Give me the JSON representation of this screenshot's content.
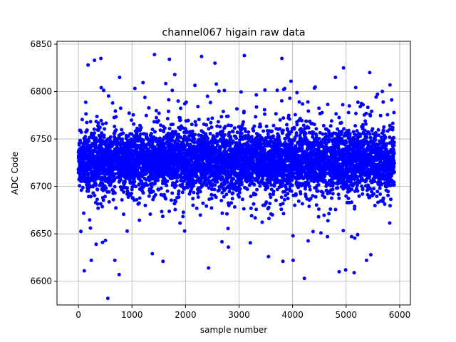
{
  "chart_data": {
    "type": "scatter",
    "title": "channel067 higain raw data",
    "xlabel": "sample number",
    "ylabel": "ADC Code",
    "xlim": [
      -400,
      6200
    ],
    "ylim": [
      6575,
      6853
    ],
    "x_ticks": [
      0,
      1000,
      2000,
      3000,
      4000,
      5000,
      6000
    ],
    "y_ticks": [
      6600,
      6650,
      6700,
      6750,
      6800,
      6850
    ],
    "grid": true,
    "marker_color": "#0000ff",
    "series": [
      {
        "n_points": 6000,
        "x_range": [
          0,
          5900
        ],
        "baseline": 6727,
        "core_spread": 20,
        "outliers": [
          [
            180,
            6828
          ],
          [
            300,
            6833
          ],
          [
            420,
            6835
          ],
          [
            770,
            6815
          ],
          [
            1420,
            6839
          ],
          [
            1700,
            6834
          ],
          [
            1800,
            6818
          ],
          [
            2300,
            6837
          ],
          [
            2550,
            6830
          ],
          [
            3100,
            6838
          ],
          [
            3800,
            6835
          ],
          [
            4950,
            6825
          ],
          [
            4800,
            6815
          ],
          [
            5820,
            6807
          ],
          [
            5440,
            6820
          ],
          [
            550,
            6582
          ],
          [
            760,
            6607
          ],
          [
            240,
            6622
          ],
          [
            680,
            6622
          ],
          [
            330,
            6639
          ],
          [
            450,
            6641
          ],
          [
            110,
            6611
          ],
          [
            1380,
            6629
          ],
          [
            1580,
            6621
          ],
          [
            2430,
            6614
          ],
          [
            2800,
            6636
          ],
          [
            3550,
            6626
          ],
          [
            3820,
            6621
          ],
          [
            4010,
            6622
          ],
          [
            4220,
            6603
          ],
          [
            4870,
            6610
          ],
          [
            4990,
            6612
          ],
          [
            5150,
            6609
          ],
          [
            5380,
            6622
          ],
          [
            5460,
            6628
          ]
        ]
      }
    ]
  }
}
